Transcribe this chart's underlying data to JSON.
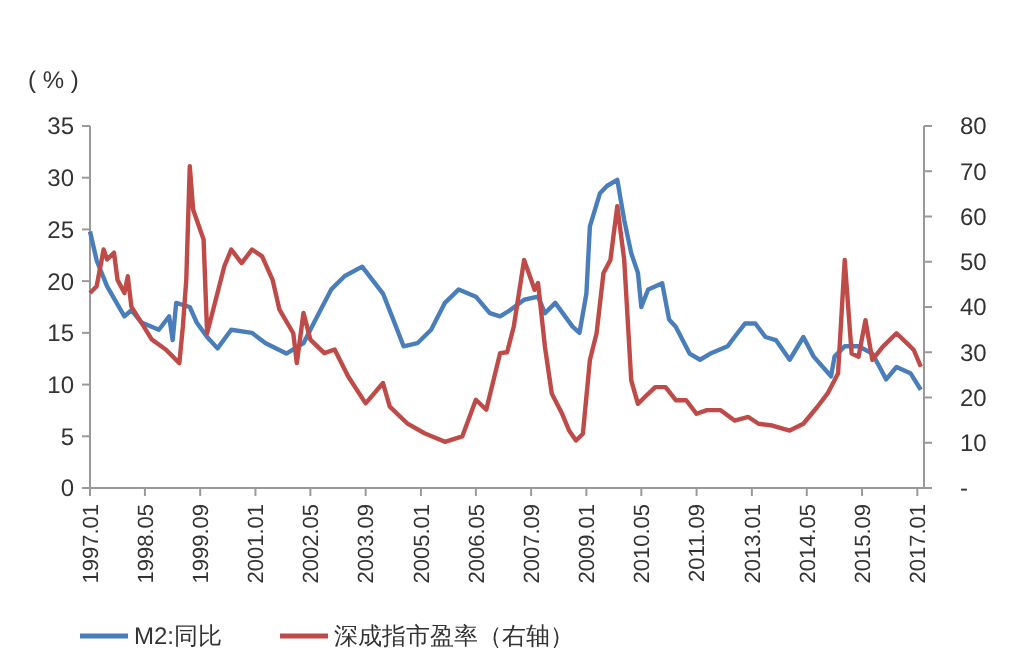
{
  "chart_data": {
    "type": "line",
    "ylabel": "( % )",
    "legend": "bottom",
    "grid": false,
    "xlim": [
      "1997-01",
      "2017-03"
    ],
    "xticks": [
      {
        "value": "1997-01",
        "label": "1997.01"
      },
      {
        "value": "1998-05",
        "label": "1998.05"
      },
      {
        "value": "1999-09",
        "label": "1999.09"
      },
      {
        "value": "2001-01",
        "label": "2001.01"
      },
      {
        "value": "2002-05",
        "label": "2002.05"
      },
      {
        "value": "2003-09",
        "label": "2003.09"
      },
      {
        "value": "2005-01",
        "label": "2005.01"
      },
      {
        "value": "2006-05",
        "label": "2006.05"
      },
      {
        "value": "2007-09",
        "label": "2007.09"
      },
      {
        "value": "2009-01",
        "label": "2009.01"
      },
      {
        "value": "2010-05",
        "label": "2010.05"
      },
      {
        "value": "2011-09",
        "label": "2011.09"
      },
      {
        "value": "2013-01",
        "label": "2013.01"
      },
      {
        "value": "2014-05",
        "label": "2014.05"
      },
      {
        "value": "2015-09",
        "label": "2015.09"
      },
      {
        "value": "2017-01",
        "label": "2017.01"
      }
    ],
    "ylim": [
      0,
      35
    ],
    "yticks": [
      0,
      5,
      10,
      15,
      20,
      25,
      30,
      35
    ],
    "y2lim": [
      0,
      80
    ],
    "y2ticks": [
      {
        "value": 0,
        "label": "-"
      },
      10,
      20,
      30,
      40,
      50,
      60,
      70,
      80
    ],
    "series": [
      {
        "name": "M2:同比",
        "color": "#4a7ebb",
        "x": [
          "1997-01",
          "1997-03",
          "1997-06",
          "1997-11",
          "1998-01",
          "1998-04",
          "1998-09",
          "1998-12",
          "1999-01",
          "1999-02",
          "1999-06",
          "1999-08",
          "1999-11",
          "2000-02",
          "2000-06",
          "2000-12",
          "2001-04",
          "2001-10",
          "2002-03",
          "2002-07",
          "2002-11",
          "2003-03",
          "2003-08",
          "2003-11",
          "2004-02",
          "2004-05",
          "2004-08",
          "2004-12",
          "2005-04",
          "2005-08",
          "2005-12",
          "2006-05",
          "2006-09",
          "2006-12",
          "2007-03",
          "2007-07",
          "2007-11",
          "2008-01",
          "2008-04",
          "2008-09",
          "2008-11",
          "2009-01",
          "2009-02",
          "2009-05",
          "2009-07",
          "2009-10",
          "2009-12",
          "2010-02",
          "2010-04",
          "2010-05",
          "2010-07",
          "2010-11",
          "2011-01",
          "2011-03",
          "2011-07",
          "2011-10",
          "2012-01",
          "2012-06",
          "2012-08",
          "2012-11",
          "2013-02",
          "2013-05",
          "2013-08",
          "2013-12",
          "2014-04",
          "2014-07",
          "2014-12",
          "2015-01",
          "2015-04",
          "2015-08",
          "2015-12",
          "2016-04",
          "2016-07",
          "2016-11",
          "2017-02"
        ],
        "values": [
          24.8,
          22,
          19.5,
          16.6,
          17.2,
          16,
          15.3,
          16.6,
          14.3,
          17.9,
          17.5,
          16,
          14.6,
          13.5,
          15.3,
          15,
          14,
          13,
          14,
          16.6,
          19.2,
          20.5,
          21.4,
          20.1,
          18.8,
          16.3,
          13.7,
          14,
          15.3,
          17.9,
          19.2,
          18.5,
          16.9,
          16.6,
          17.2,
          18.2,
          18.5,
          16.9,
          17.9,
          15.6,
          15,
          18.8,
          25.3,
          28.5,
          29.2,
          29.8,
          25.9,
          22.7,
          20.8,
          17.5,
          19.2,
          19.8,
          16.3,
          15.6,
          13,
          12.4,
          13,
          13.7,
          14.6,
          15.9,
          15.9,
          14.6,
          14.3,
          12.4,
          14.6,
          12.7,
          10.8,
          12.7,
          13.7,
          13.7,
          13,
          10.5,
          11.7,
          11.1,
          9.5
        ]
      },
      {
        "name": "深成指市盈率（右轴）",
        "color": "#be4b48",
        "axis": "y2",
        "x": [
          "1997-01",
          "1997-03",
          "1997-05",
          "1997-06",
          "1997-08",
          "1997-09",
          "1997-11",
          "1997-12",
          "1998-01",
          "1998-04",
          "1998-07",
          "1998-11",
          "1999-03",
          "1999-04",
          "1999-05",
          "1999-06",
          "1999-07",
          "1999-10",
          "1999-11",
          "2000-01",
          "2000-04",
          "2000-06",
          "2000-09",
          "2000-12",
          "2001-03",
          "2001-06",
          "2001-08",
          "2001-12",
          "2002-01",
          "2002-03",
          "2002-05",
          "2002-09",
          "2002-12",
          "2003-04",
          "2003-09",
          "2004-02",
          "2004-04",
          "2004-09",
          "2005-02",
          "2005-08",
          "2006-01",
          "2006-05",
          "2006-08",
          "2006-12",
          "2007-02",
          "2007-04",
          "2007-07",
          "2007-09",
          "2007-10",
          "2007-11",
          "2008-01",
          "2008-03",
          "2008-06",
          "2008-08",
          "2008-10",
          "2008-12",
          "2009-02",
          "2009-04",
          "2009-06",
          "2009-08",
          "2009-10",
          "2009-12",
          "2010-02",
          "2010-04",
          "2010-06",
          "2010-09",
          "2010-12",
          "2011-03",
          "2011-06",
          "2011-09",
          "2011-12",
          "2012-04",
          "2012-08",
          "2012-12",
          "2013-03",
          "2013-07",
          "2013-12",
          "2014-04",
          "2014-08",
          "2014-11",
          "2015-02",
          "2015-04",
          "2015-06",
          "2015-08",
          "2015-10",
          "2015-12",
          "2016-03",
          "2016-07",
          "2016-10",
          "2016-12",
          "2017-02"
        ],
        "values": [
          43.1,
          44.6,
          52.7,
          50.5,
          52,
          46,
          43.1,
          46.8,
          40.1,
          36.5,
          32.8,
          30.6,
          27.6,
          35.7,
          46,
          71.1,
          61.5,
          54.9,
          34.2,
          40.1,
          49,
          52.7,
          49.7,
          52.7,
          51.2,
          46,
          39.4,
          34.2,
          27.6,
          38.7,
          32.8,
          29.8,
          30.6,
          24.6,
          18.7,
          23.2,
          18,
          14.3,
          12.1,
          10.2,
          11.4,
          19.5,
          17.3,
          29.8,
          30,
          35.7,
          50.4,
          46,
          43.8,
          45.3,
          31.2,
          20.9,
          16.4,
          12.7,
          10.5,
          12,
          28.3,
          34.2,
          47.5,
          50.4,
          62.3,
          50.4,
          23.8,
          18.6,
          20.1,
          22.3,
          22.3,
          19.4,
          19.4,
          16.4,
          17.2,
          17.2,
          14.9,
          15.7,
          14.2,
          13.8,
          12.7,
          14.2,
          17.9,
          20.9,
          25.3,
          50.4,
          29.7,
          29,
          37.1,
          28.3,
          31.2,
          34.2,
          32,
          30.5,
          26.8
        ]
      }
    ]
  }
}
